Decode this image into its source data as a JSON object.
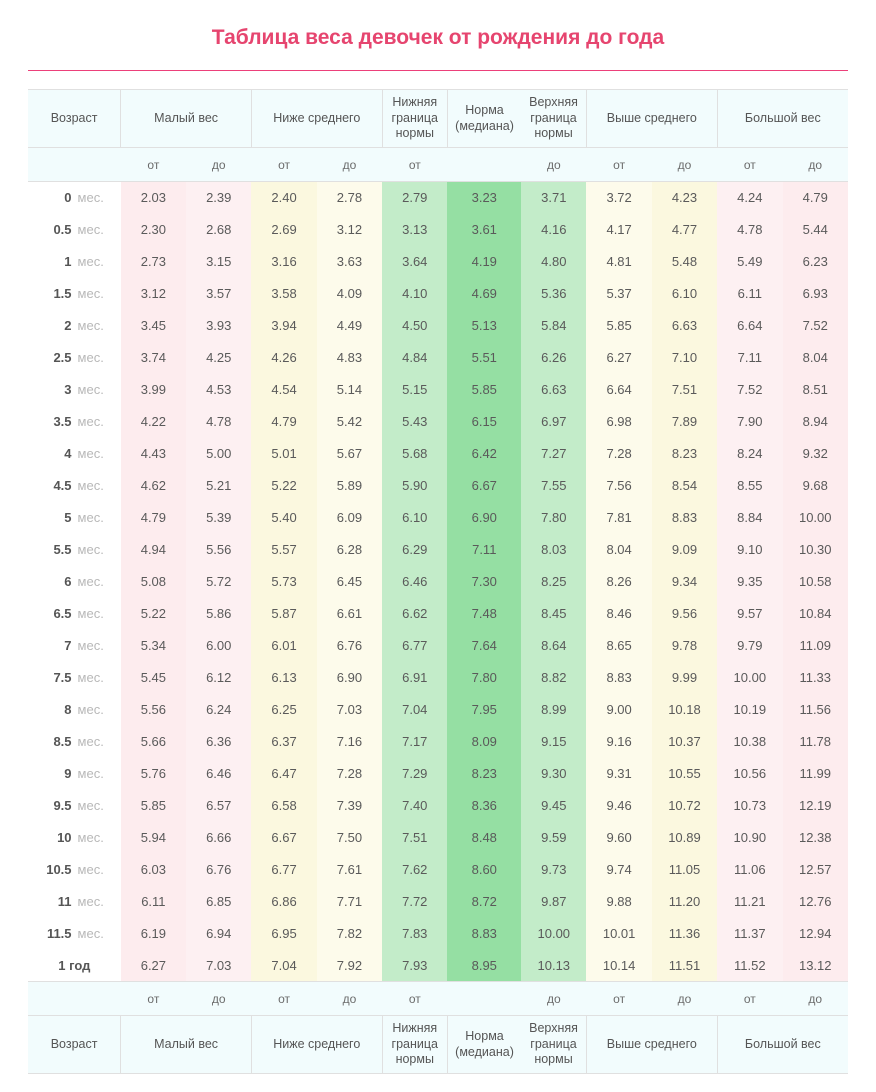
{
  "title": "Таблица веса девочек от рождения до года",
  "title_color": "#e6456f",
  "headers": {
    "age": "Возраст",
    "low": "Малый вес",
    "below_avg": "Ниже среднего",
    "lower_norm": "Нижняя граница нормы",
    "median": "Норма (медиана)",
    "upper_norm": "Верхняя граница нормы",
    "above_avg": "Выше среднего",
    "high": "Большой вес",
    "from": "от",
    "to": "до"
  },
  "unit_month": "мес.",
  "rows": [
    {
      "age_num": "0",
      "age_unit": "мес.",
      "v": [
        "2.03",
        "2.39",
        "2.40",
        "2.78",
        "2.79",
        "3.23",
        "3.71",
        "3.72",
        "4.23",
        "4.24",
        "4.79"
      ]
    },
    {
      "age_num": "0.5",
      "age_unit": "мес.",
      "v": [
        "2.30",
        "2.68",
        "2.69",
        "3.12",
        "3.13",
        "3.61",
        "4.16",
        "4.17",
        "4.77",
        "4.78",
        "5.44"
      ]
    },
    {
      "age_num": "1",
      "age_unit": "мес.",
      "v": [
        "2.73",
        "3.15",
        "3.16",
        "3.63",
        "3.64",
        "4.19",
        "4.80",
        "4.81",
        "5.48",
        "5.49",
        "6.23"
      ]
    },
    {
      "age_num": "1.5",
      "age_unit": "мес.",
      "v": [
        "3.12",
        "3.57",
        "3.58",
        "4.09",
        "4.10",
        "4.69",
        "5.36",
        "5.37",
        "6.10",
        "6.11",
        "6.93"
      ]
    },
    {
      "age_num": "2",
      "age_unit": "мес.",
      "v": [
        "3.45",
        "3.93",
        "3.94",
        "4.49",
        "4.50",
        "5.13",
        "5.84",
        "5.85",
        "6.63",
        "6.64",
        "7.52"
      ]
    },
    {
      "age_num": "2.5",
      "age_unit": "мес.",
      "v": [
        "3.74",
        "4.25",
        "4.26",
        "4.83",
        "4.84",
        "5.51",
        "6.26",
        "6.27",
        "7.10",
        "7.11",
        "8.04"
      ]
    },
    {
      "age_num": "3",
      "age_unit": "мес.",
      "v": [
        "3.99",
        "4.53",
        "4.54",
        "5.14",
        "5.15",
        "5.85",
        "6.63",
        "6.64",
        "7.51",
        "7.52",
        "8.51"
      ]
    },
    {
      "age_num": "3.5",
      "age_unit": "мес.",
      "v": [
        "4.22",
        "4.78",
        "4.79",
        "5.42",
        "5.43",
        "6.15",
        "6.97",
        "6.98",
        "7.89",
        "7.90",
        "8.94"
      ]
    },
    {
      "age_num": "4",
      "age_unit": "мес.",
      "v": [
        "4.43",
        "5.00",
        "5.01",
        "5.67",
        "5.68",
        "6.42",
        "7.27",
        "7.28",
        "8.23",
        "8.24",
        "9.32"
      ]
    },
    {
      "age_num": "4.5",
      "age_unit": "мес.",
      "v": [
        "4.62",
        "5.21",
        "5.22",
        "5.89",
        "5.90",
        "6.67",
        "7.55",
        "7.56",
        "8.54",
        "8.55",
        "9.68"
      ]
    },
    {
      "age_num": "5",
      "age_unit": "мес.",
      "v": [
        "4.79",
        "5.39",
        "5.40",
        "6.09",
        "6.10",
        "6.90",
        "7.80",
        "7.81",
        "8.83",
        "8.84",
        "10.00"
      ]
    },
    {
      "age_num": "5.5",
      "age_unit": "мес.",
      "v": [
        "4.94",
        "5.56",
        "5.57",
        "6.28",
        "6.29",
        "7.11",
        "8.03",
        "8.04",
        "9.09",
        "9.10",
        "10.30"
      ]
    },
    {
      "age_num": "6",
      "age_unit": "мес.",
      "v": [
        "5.08",
        "5.72",
        "5.73",
        "6.45",
        "6.46",
        "7.30",
        "8.25",
        "8.26",
        "9.34",
        "9.35",
        "10.58"
      ]
    },
    {
      "age_num": "6.5",
      "age_unit": "мес.",
      "v": [
        "5.22",
        "5.86",
        "5.87",
        "6.61",
        "6.62",
        "7.48",
        "8.45",
        "8.46",
        "9.56",
        "9.57",
        "10.84"
      ]
    },
    {
      "age_num": "7",
      "age_unit": "мес.",
      "v": [
        "5.34",
        "6.00",
        "6.01",
        "6.76",
        "6.77",
        "7.64",
        "8.64",
        "8.65",
        "9.78",
        "9.79",
        "11.09"
      ]
    },
    {
      "age_num": "7.5",
      "age_unit": "мес.",
      "v": [
        "5.45",
        "6.12",
        "6.13",
        "6.90",
        "6.91",
        "7.80",
        "8.82",
        "8.83",
        "9.99",
        "10.00",
        "11.33"
      ]
    },
    {
      "age_num": "8",
      "age_unit": "мес.",
      "v": [
        "5.56",
        "6.24",
        "6.25",
        "7.03",
        "7.04",
        "7.95",
        "8.99",
        "9.00",
        "10.18",
        "10.19",
        "11.56"
      ]
    },
    {
      "age_num": "8.5",
      "age_unit": "мес.",
      "v": [
        "5.66",
        "6.36",
        "6.37",
        "7.16",
        "7.17",
        "8.09",
        "9.15",
        "9.16",
        "10.37",
        "10.38",
        "11.78"
      ]
    },
    {
      "age_num": "9",
      "age_unit": "мес.",
      "v": [
        "5.76",
        "6.46",
        "6.47",
        "7.28",
        "7.29",
        "8.23",
        "9.30",
        "9.31",
        "10.55",
        "10.56",
        "11.99"
      ]
    },
    {
      "age_num": "9.5",
      "age_unit": "мес.",
      "v": [
        "5.85",
        "6.57",
        "6.58",
        "7.39",
        "7.40",
        "8.36",
        "9.45",
        "9.46",
        "10.72",
        "10.73",
        "12.19"
      ]
    },
    {
      "age_num": "10",
      "age_unit": "мес.",
      "v": [
        "5.94",
        "6.66",
        "6.67",
        "7.50",
        "7.51",
        "8.48",
        "9.59",
        "9.60",
        "10.89",
        "10.90",
        "12.38"
      ]
    },
    {
      "age_num": "10.5",
      "age_unit": "мес.",
      "v": [
        "6.03",
        "6.76",
        "6.77",
        "7.61",
        "7.62",
        "8.60",
        "9.73",
        "9.74",
        "11.05",
        "11.06",
        "12.57"
      ]
    },
    {
      "age_num": "11",
      "age_unit": "мес.",
      "v": [
        "6.11",
        "6.85",
        "6.86",
        "7.71",
        "7.72",
        "8.72",
        "9.87",
        "9.88",
        "11.20",
        "11.21",
        "12.76"
      ]
    },
    {
      "age_num": "11.5",
      "age_unit": "мес.",
      "v": [
        "6.19",
        "6.94",
        "6.95",
        "7.82",
        "7.83",
        "8.83",
        "10.00",
        "10.01",
        "11.36",
        "11.37",
        "12.94"
      ]
    },
    {
      "age_num": "1 год",
      "age_unit": "",
      "v": [
        "6.27",
        "7.03",
        "7.04",
        "7.92",
        "7.93",
        "8.95",
        "10.13",
        "10.14",
        "11.51",
        "11.52",
        "13.12"
      ]
    }
  ],
  "band_colors": {
    "pink_dark": "#fdecee",
    "pink_light": "#fdf0f2",
    "yellow_dark": "#fbf8df",
    "yellow_light": "#fdfbeb",
    "green_light": "#c3ecc9",
    "green_dark": "#95dfa3",
    "header_bg": "#f2fcfd",
    "border": "#e0e0e0",
    "rule": "#ec407a"
  }
}
